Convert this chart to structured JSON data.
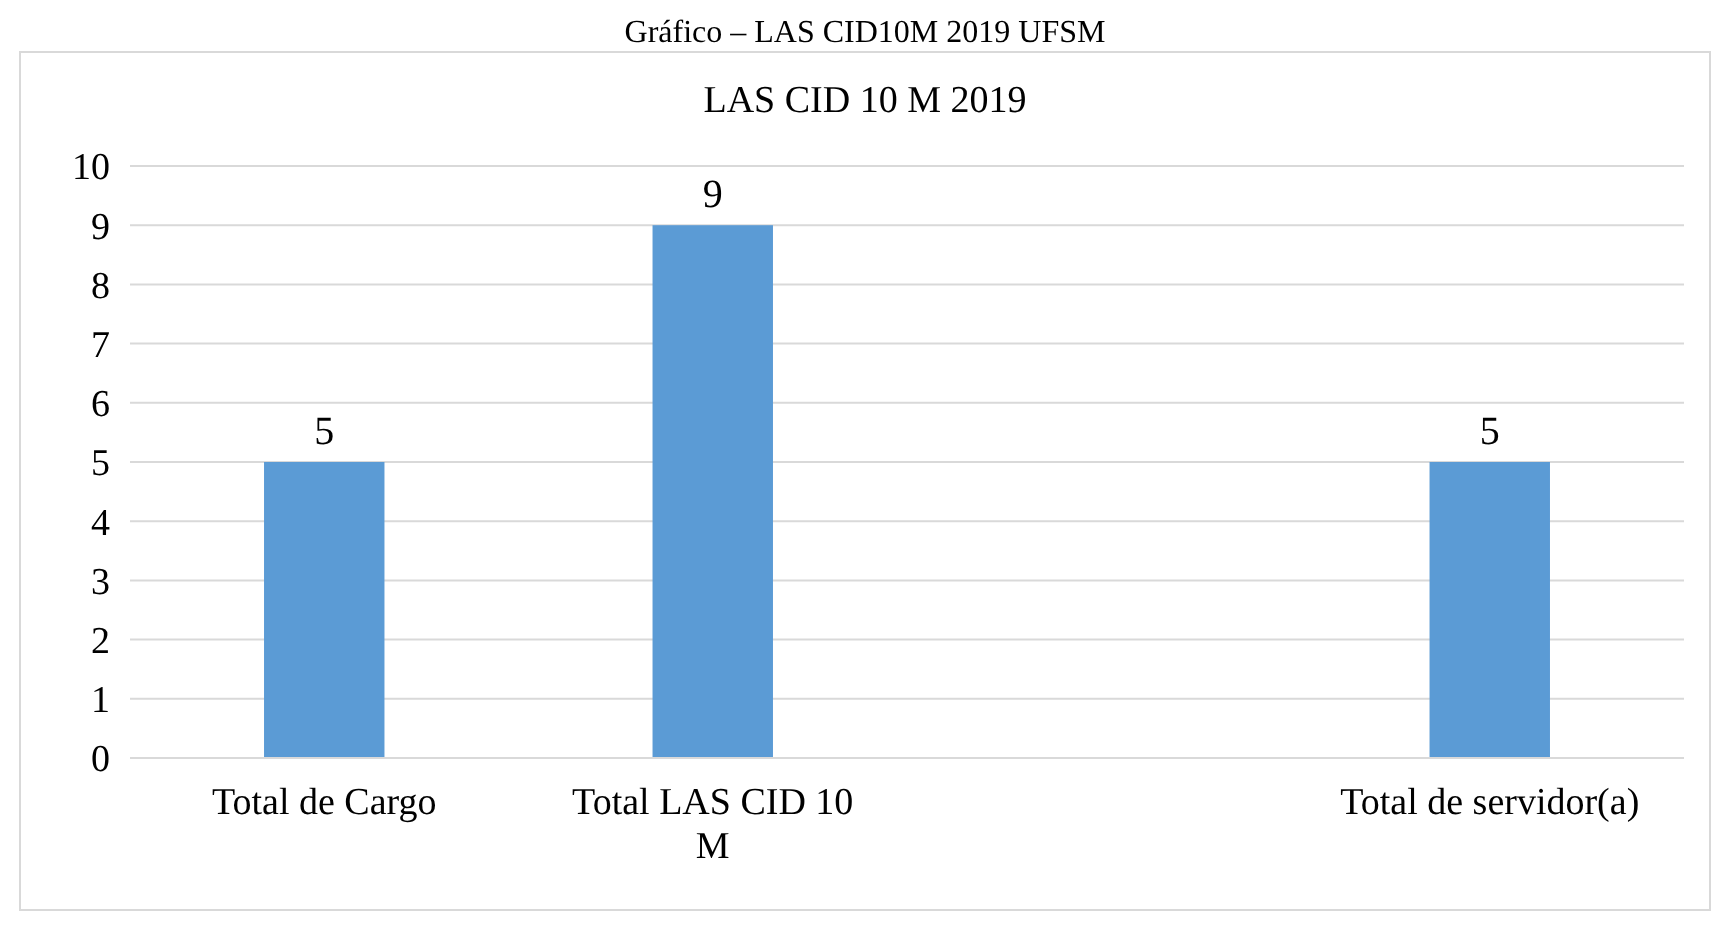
{
  "chart_data": {
    "type": "bar",
    "title": "LAS CID 10 M 2019",
    "annotations": [
      "Gráfico – LAS CID10M 2019 UFSM"
    ],
    "categories": [
      "Total de Cargo",
      "Total LAS CID 10 M",
      null,
      "Total de servidor(a)"
    ],
    "values": [
      5,
      9,
      null,
      5
    ],
    "color": "#5b9bd5",
    "ylim": [
      0,
      10
    ],
    "yticks": [
      0,
      1,
      2,
      3,
      4,
      5,
      6,
      7,
      8,
      9,
      10
    ],
    "grid": "y",
    "data_labels": true
  }
}
